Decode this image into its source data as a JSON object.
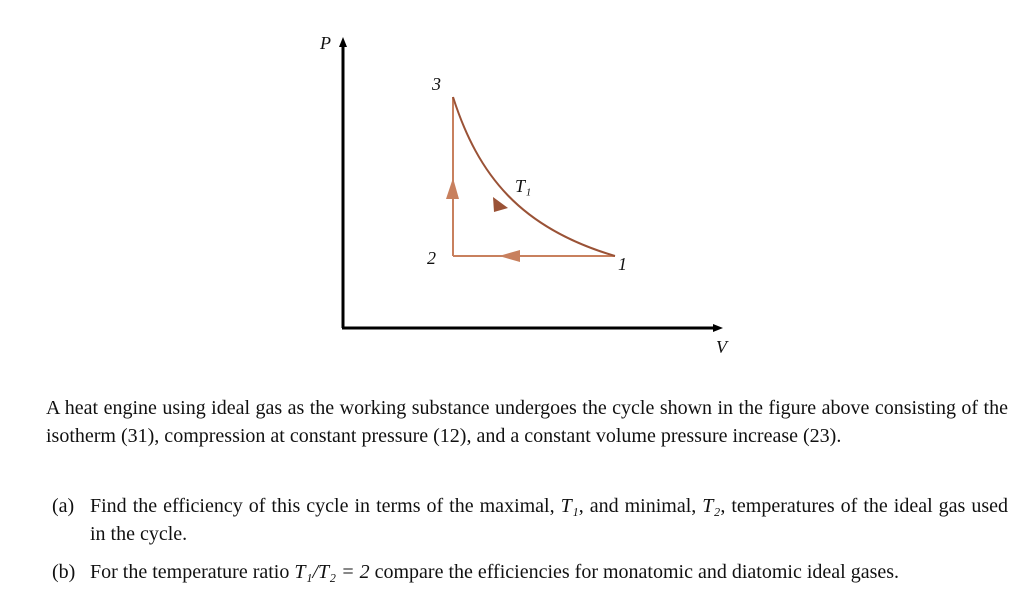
{
  "diagram": {
    "y_axis_label": "P",
    "x_axis_label": "V",
    "points": [
      "3",
      "2",
      "1"
    ],
    "isotherm_label": "T₁"
  },
  "problem": {
    "statement": "A heat engine using ideal gas as the working substance undergoes the cycle shown in the figure above consisting of the isotherm (31), compression at constant pressure (12), and a constant volume pressure increase (23).",
    "parts": [
      {
        "label": "(a)",
        "segments": [
          "Find the efficiency of this cycle in terms of the maximal, ",
          "T₁",
          ", and minimal, ",
          "T₂",
          ", temperatures of the ideal gas used in the cycle."
        ]
      },
      {
        "label": "(b)",
        "segments": [
          "For the temperature ratio ",
          "T₁/T₂ = 2",
          " compare the efficiencies for monatomic and diatomic ideal gases."
        ]
      }
    ]
  }
}
